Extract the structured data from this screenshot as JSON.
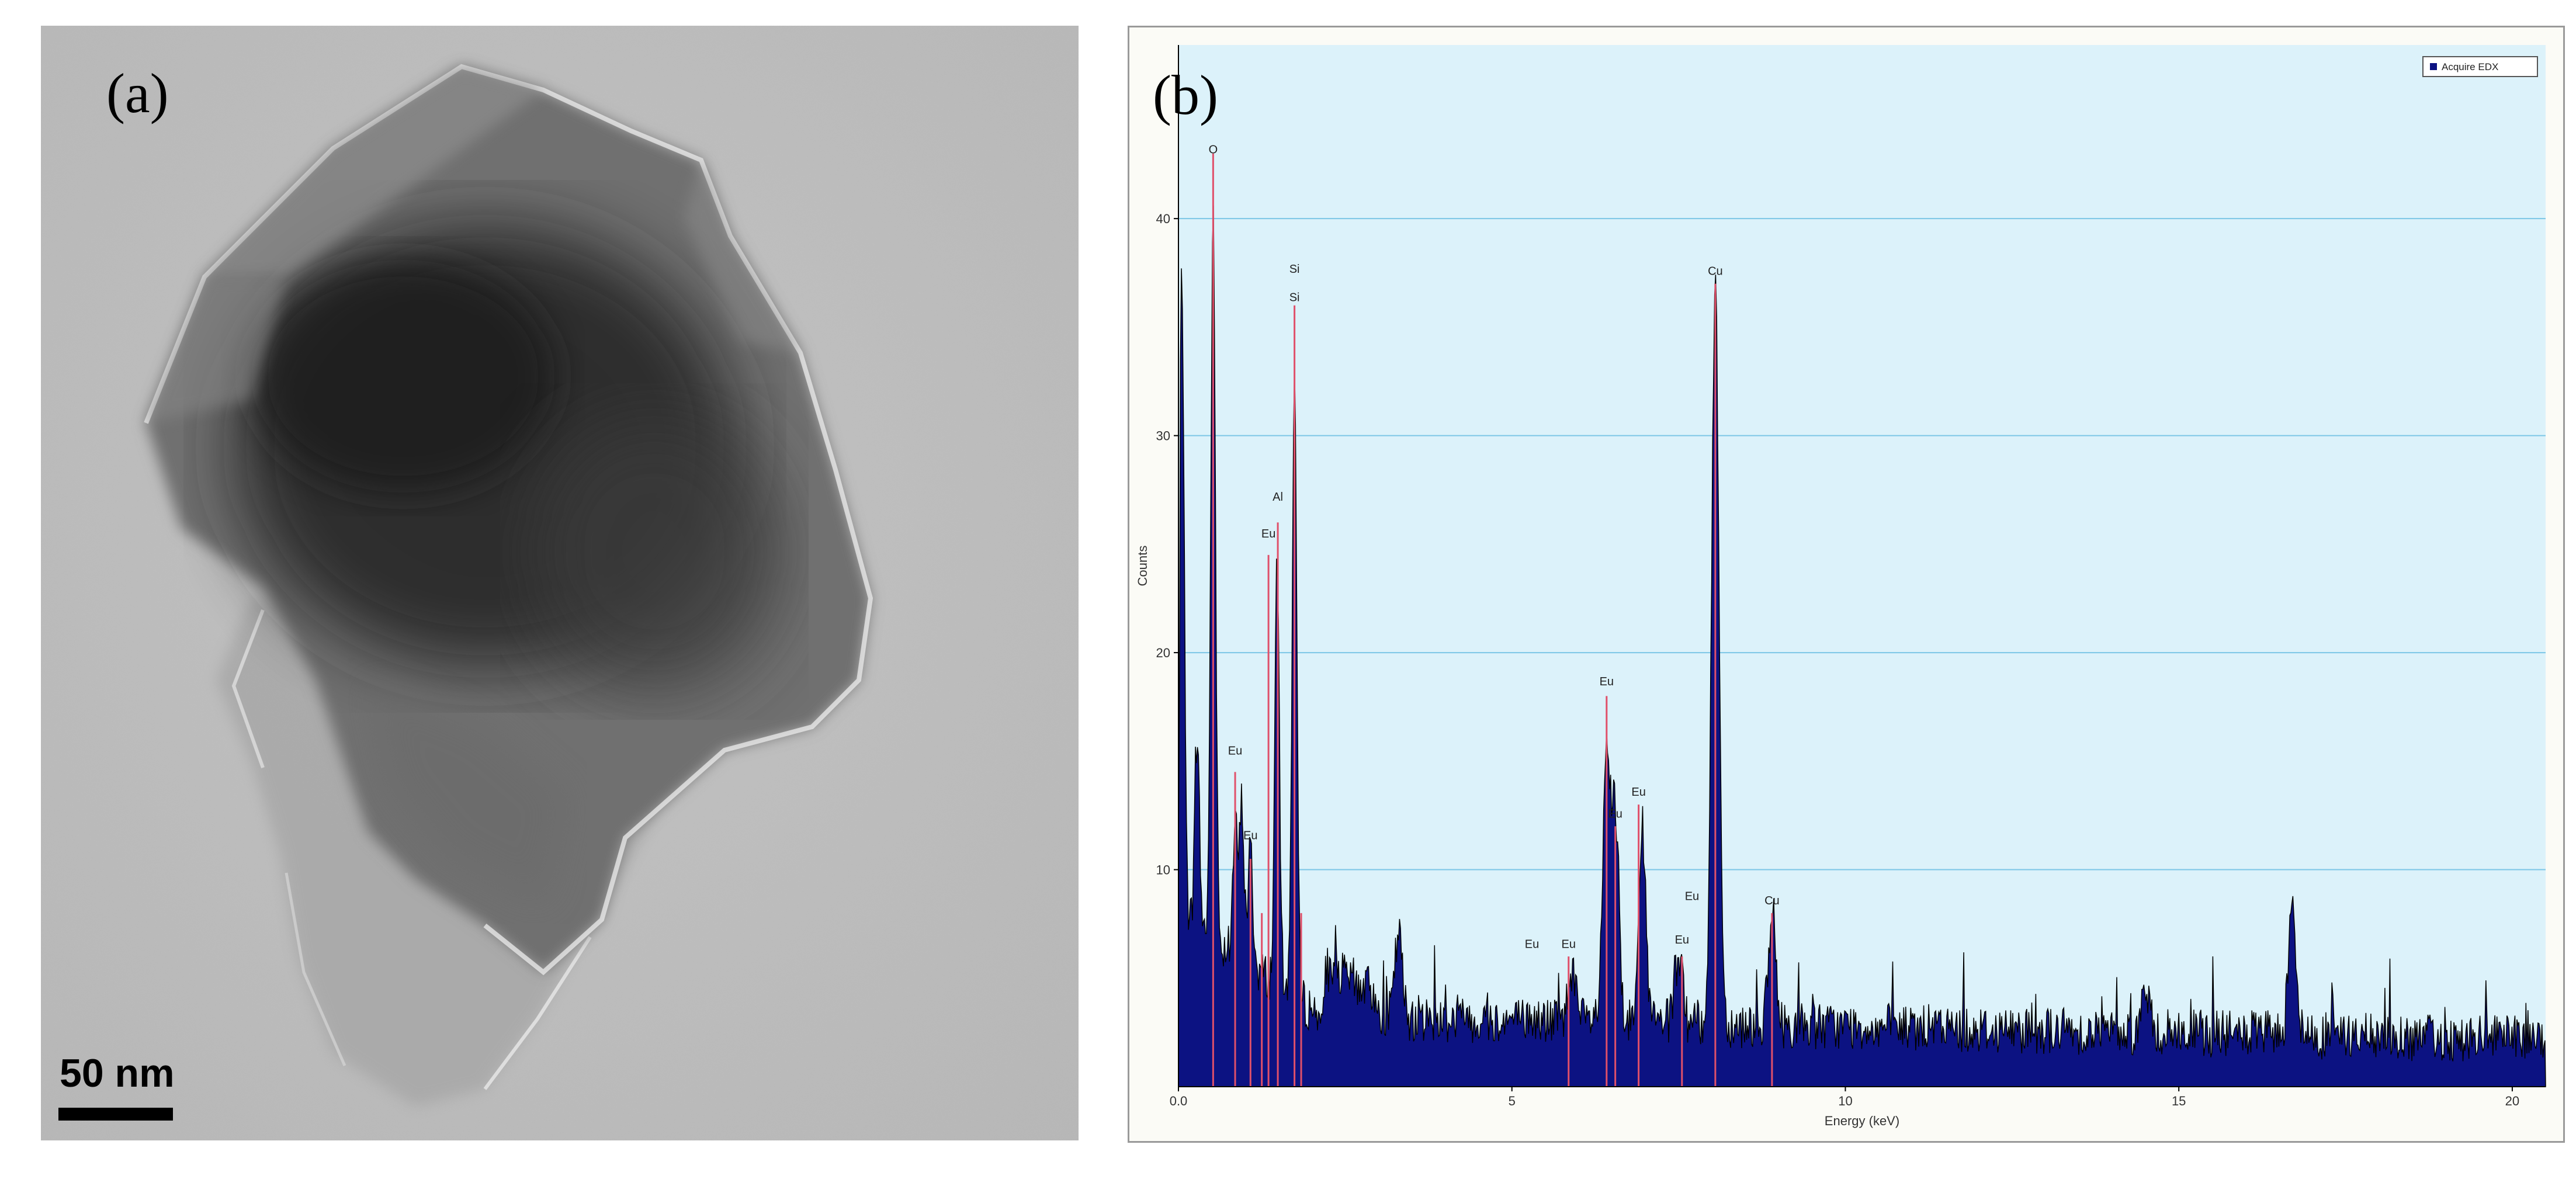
{
  "panel_a": {
    "label": "(a)",
    "scale_bar": "50 nm"
  },
  "panel_b": {
    "label": "(b)"
  },
  "colors": {
    "plot_background": "#dcf2fa",
    "spectrum_fill": "#0c1282",
    "marker_line": "#e0506a",
    "gridline": "#7cc6e6"
  },
  "chart_data": {
    "type": "area",
    "xlabel": "Energy (keV)",
    "ylabel": "Counts",
    "xlim": [
      0,
      20.5
    ],
    "ylim": [
      0,
      48
    ],
    "x_ticks": [
      0.0,
      5,
      10,
      15,
      20
    ],
    "x_tick_labels": [
      "0.0",
      "5",
      "10",
      "15",
      "20"
    ],
    "y_ticks": [
      10,
      20,
      30,
      40
    ],
    "grid": true,
    "legend": {
      "placement": "top-right",
      "entries": [
        "Acquire EDX"
      ]
    },
    "series": [
      {
        "name": "Acquire EDX",
        "peaks": [
          {
            "x": 0.05,
            "y": 38
          },
          {
            "x": 0.28,
            "y": 16
          },
          {
            "x": 0.52,
            "y": 40
          },
          {
            "x": 0.85,
            "y": 12
          },
          {
            "x": 0.95,
            "y": 13
          },
          {
            "x": 1.08,
            "y": 11
          },
          {
            "x": 1.48,
            "y": 24
          },
          {
            "x": 1.74,
            "y": 33
          },
          {
            "x": 3.3,
            "y": 7
          },
          {
            "x": 5.9,
            "y": 5.5
          },
          {
            "x": 6.42,
            "y": 15
          },
          {
            "x": 6.55,
            "y": 12
          },
          {
            "x": 6.95,
            "y": 12
          },
          {
            "x": 7.5,
            "y": 6
          },
          {
            "x": 8.05,
            "y": 37
          },
          {
            "x": 8.9,
            "y": 7.5
          },
          {
            "x": 14.5,
            "y": 4.5
          },
          {
            "x": 16.7,
            "y": 9
          }
        ]
      }
    ],
    "annotations": [
      {
        "text": "O",
        "x": 0.52,
        "y": 43
      },
      {
        "text": "Si",
        "x": 1.74,
        "y": 37.5
      },
      {
        "text": "Si",
        "x": 1.74,
        "y": 36.2
      },
      {
        "text": "Cu",
        "x": 8.05,
        "y": 37.4
      },
      {
        "text": "Al",
        "x": 1.49,
        "y": 27
      },
      {
        "text": "Eu",
        "x": 1.35,
        "y": 25.3
      },
      {
        "text": "Eu",
        "x": 6.42,
        "y": 18.5
      },
      {
        "text": "Eu",
        "x": 0.85,
        "y": 15.3
      },
      {
        "text": "Eu",
        "x": 6.9,
        "y": 13.4
      },
      {
        "text": "Eu",
        "x": 6.55,
        "y": 12.4
      },
      {
        "text": "Eu",
        "x": 1.08,
        "y": 11.4
      },
      {
        "text": "Eu",
        "x": 7.7,
        "y": 8.6
      },
      {
        "text": "Cu",
        "x": 8.9,
        "y": 8.4
      },
      {
        "text": "Eu",
        "x": 5.3,
        "y": 6.4
      },
      {
        "text": "Eu",
        "x": 5.85,
        "y": 6.4
      },
      {
        "text": "Eu",
        "x": 7.55,
        "y": 6.6
      }
    ],
    "marker_lines": [
      {
        "x": 0.52,
        "y": 43
      },
      {
        "x": 0.85,
        "y": 14.5
      },
      {
        "x": 1.08,
        "y": 10.5
      },
      {
        "x": 1.25,
        "y": 8
      },
      {
        "x": 1.35,
        "y": 24.5
      },
      {
        "x": 1.49,
        "y": 26
      },
      {
        "x": 1.74,
        "y": 36
      },
      {
        "x": 1.84,
        "y": 8
      },
      {
        "x": 5.85,
        "y": 6
      },
      {
        "x": 6.42,
        "y": 18
      },
      {
        "x": 6.55,
        "y": 12
      },
      {
        "x": 6.9,
        "y": 13
      },
      {
        "x": 7.55,
        "y": 6
      },
      {
        "x": 8.05,
        "y": 37
      },
      {
        "x": 8.9,
        "y": 8
      }
    ]
  }
}
